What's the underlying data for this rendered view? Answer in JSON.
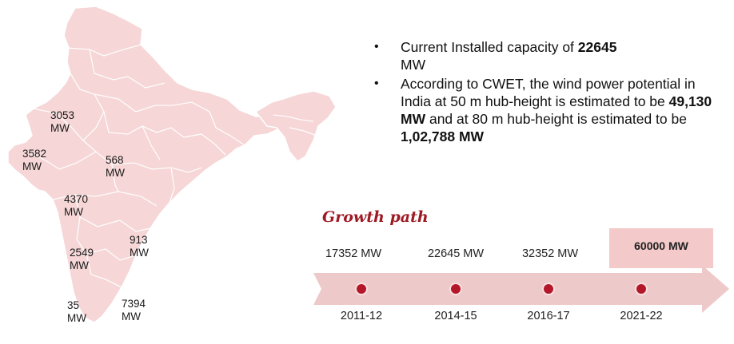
{
  "map": {
    "labels": [
      {
        "value": "3053",
        "unit": "MW"
      },
      {
        "value": "3582",
        "unit": "MW"
      },
      {
        "value": "568",
        "unit": "MW"
      },
      {
        "value": "4370",
        "unit": "MW"
      },
      {
        "value": "913",
        "unit": "MW"
      },
      {
        "value": "2549",
        "unit": "MW"
      },
      {
        "value": "35",
        "unit": "MW"
      },
      {
        "value": "7394",
        "unit": "MW"
      }
    ]
  },
  "bullets": {
    "b1_text": "Current Installed capacity of ",
    "b1_bold": "22645",
    "b1_tail": "MW",
    "b2_text": "According to CWET, the wind power potential in India at 50 m hub-height is estimated to be ",
    "b2_bold1": "49,130  MW",
    "b2_mid": " and at 80 m hub-height is estimated to be ",
    "b2_bold2": "1,02,788  MW"
  },
  "growth": {
    "title": "Growth path",
    "milestones": [
      {
        "value": "17352 MW",
        "year": "2011-12"
      },
      {
        "value": "22645 MW",
        "year": "2014-15"
      },
      {
        "value": "32352 MW",
        "year": "2016-17"
      },
      {
        "value": "60000 MW",
        "year": "2021-22"
      }
    ]
  },
  "colors": {
    "map_fill": "#f6d6d6",
    "map_border": "#ffffff",
    "arrow": "#eec9c9",
    "dot": "#b5172a",
    "title": "#9e1b25",
    "target_box": "#f3c9c9"
  }
}
